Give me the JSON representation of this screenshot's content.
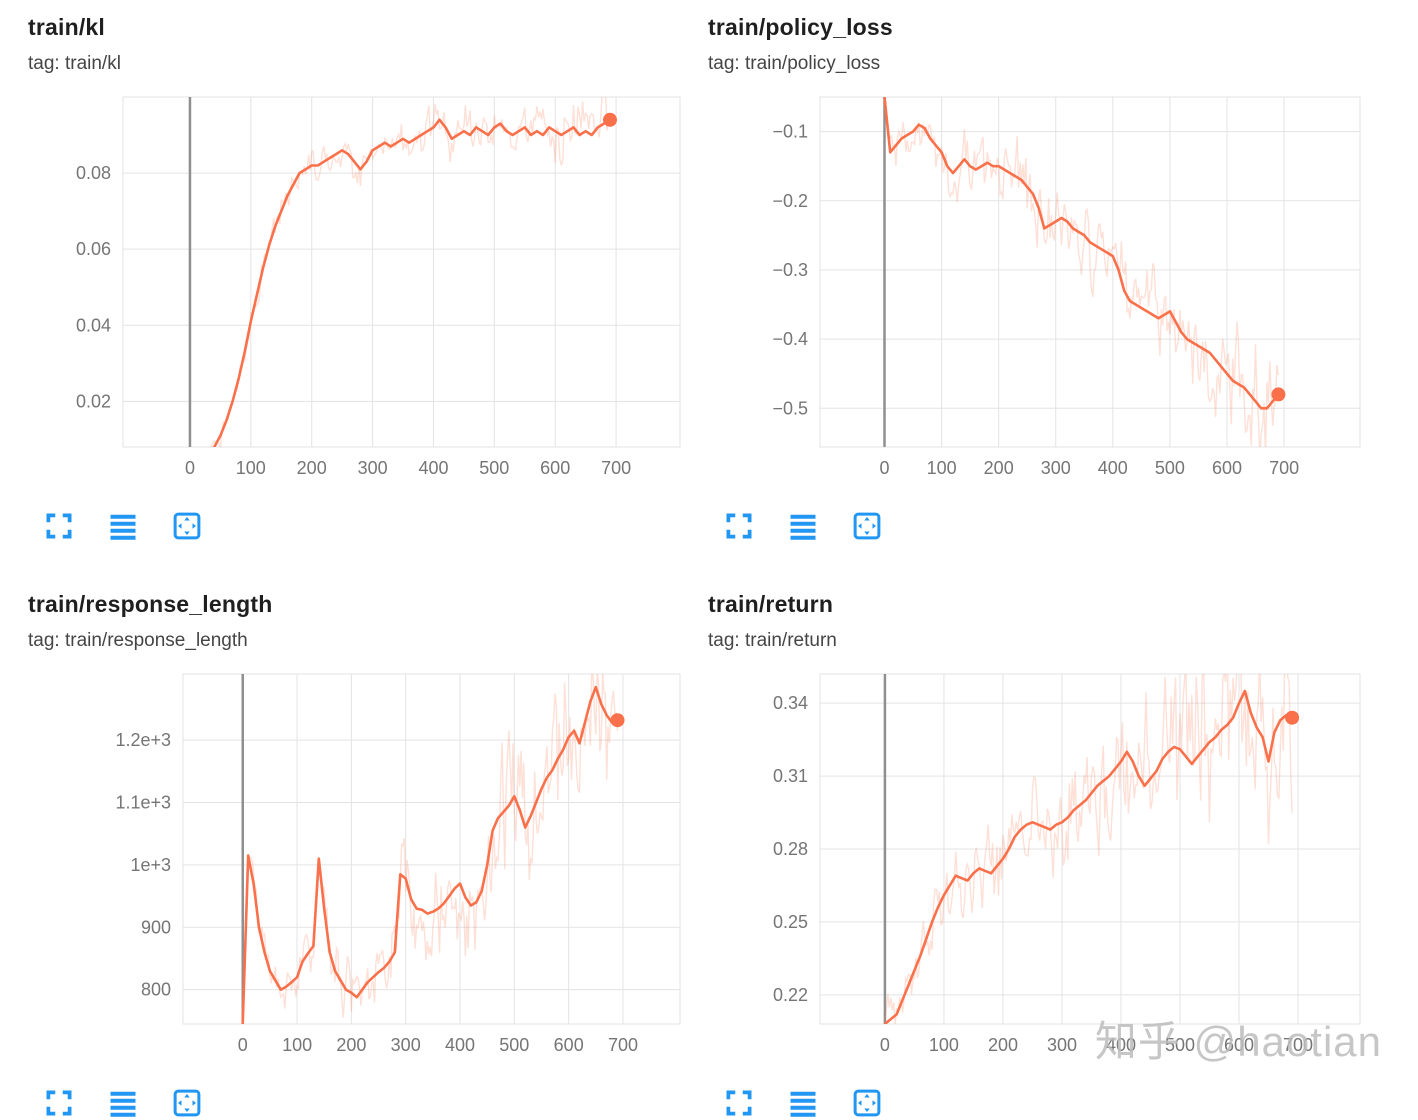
{
  "colors": {
    "line": "#f9704a",
    "line_raw": "rgba(249,112,74,0.22)",
    "grid": "#e3e3e3",
    "zero_line": "#8f8f8f",
    "tick_label": "#757575",
    "icon_blue": "#2196f3"
  },
  "watermark": {
    "text": "知乎 @haotian"
  },
  "chart_data": [
    {
      "type": "line",
      "title": "train/kl",
      "tag": "tag: train/kl",
      "x_start": 0,
      "x_step": 10,
      "x_ticks": [
        0,
        100,
        200,
        300,
        400,
        500,
        600,
        700
      ],
      "y_ticks": [
        0.02,
        0.04,
        0.06,
        0.08
      ],
      "y_tick_labels": [
        "0.02",
        "0.04",
        "0.06",
        "0.08"
      ],
      "xlim": [
        -110,
        805
      ],
      "ylim": [
        0.008,
        0.1
      ],
      "margin_left": 95,
      "end_dot": true,
      "raw_band": {
        "amp_start": 0.0015,
        "amp_end": 0.006
      },
      "series": [
        {
          "name": "smoothed",
          "values": [
            0.004,
            0.004,
            0.005,
            0.006,
            0.008,
            0.011,
            0.015,
            0.02,
            0.026,
            0.033,
            0.041,
            0.048,
            0.055,
            0.061,
            0.066,
            0.07,
            0.074,
            0.077,
            0.08,
            0.081,
            0.082,
            0.082,
            0.083,
            0.084,
            0.085,
            0.086,
            0.085,
            0.083,
            0.081,
            0.083,
            0.086,
            0.087,
            0.088,
            0.087,
            0.088,
            0.089,
            0.088,
            0.089,
            0.09,
            0.091,
            0.092,
            0.094,
            0.092,
            0.089,
            0.09,
            0.091,
            0.09,
            0.092,
            0.091,
            0.09,
            0.092,
            0.093,
            0.091,
            0.09,
            0.091,
            0.092,
            0.09,
            0.091,
            0.09,
            0.092,
            0.091,
            0.09,
            0.091,
            0.092,
            0.09,
            0.091,
            0.09,
            0.092,
            0.093,
            0.094
          ]
        }
      ]
    },
    {
      "type": "line",
      "title": "train/policy_loss",
      "tag": "tag: train/policy_loss",
      "x_start": 0,
      "x_step": 10,
      "x_ticks": [
        0,
        100,
        200,
        300,
        400,
        500,
        600,
        700
      ],
      "y_ticks": [
        -0.1,
        -0.2,
        -0.3,
        -0.4,
        -0.5
      ],
      "y_tick_labels": [
        "−0.1",
        "−0.2",
        "−0.3",
        "−0.4",
        "−0.5"
      ],
      "xlim": [
        -113,
        833
      ],
      "ylim": [
        -0.556,
        -0.05
      ],
      "margin_left": 112,
      "end_dot": true,
      "raw_band": {
        "amp_start": 0.022,
        "amp_end": 0.055
      },
      "series": [
        {
          "name": "smoothed",
          "values": [
            -0.05,
            -0.13,
            -0.12,
            -0.11,
            -0.105,
            -0.1,
            -0.09,
            -0.095,
            -0.11,
            -0.12,
            -0.13,
            -0.15,
            -0.16,
            -0.15,
            -0.14,
            -0.15,
            -0.155,
            -0.15,
            -0.145,
            -0.15,
            -0.15,
            -0.155,
            -0.16,
            -0.165,
            -0.17,
            -0.18,
            -0.19,
            -0.21,
            -0.24,
            -0.235,
            -0.23,
            -0.225,
            -0.23,
            -0.24,
            -0.245,
            -0.25,
            -0.26,
            -0.265,
            -0.27,
            -0.275,
            -0.28,
            -0.3,
            -0.33,
            -0.345,
            -0.35,
            -0.355,
            -0.36,
            -0.365,
            -0.37,
            -0.365,
            -0.36,
            -0.375,
            -0.39,
            -0.4,
            -0.405,
            -0.41,
            -0.415,
            -0.42,
            -0.43,
            -0.44,
            -0.45,
            -0.46,
            -0.465,
            -0.47,
            -0.48,
            -0.49,
            -0.5,
            -0.5,
            -0.49,
            -0.48
          ]
        }
      ]
    },
    {
      "type": "line",
      "title": "train/response_length",
      "tag": "tag: train/response_length",
      "x_start": 0,
      "x_step": 10,
      "x_ticks": [
        0,
        100,
        200,
        300,
        400,
        500,
        600,
        700
      ],
      "y_ticks": [
        800,
        900,
        1000,
        1100,
        1200
      ],
      "y_tick_labels": [
        "800",
        "900",
        "1e+3",
        "1.1e+3",
        "1.2e+3"
      ],
      "xlim": [
        -110,
        805
      ],
      "ylim": [
        745,
        1306
      ],
      "margin_left": 155,
      "end_dot": true,
      "raw_band": {
        "amp_start": 14,
        "amp_end": 85
      },
      "series": [
        {
          "name": "smoothed",
          "values": [
            745,
            1015,
            970,
            900,
            860,
            830,
            815,
            800,
            805,
            812,
            820,
            845,
            858,
            870,
            1010,
            930,
            860,
            830,
            815,
            800,
            795,
            788,
            800,
            812,
            820,
            828,
            835,
            845,
            860,
            985,
            978,
            945,
            930,
            928,
            922,
            925,
            930,
            938,
            950,
            962,
            970,
            948,
            935,
            940,
            958,
            1000,
            1055,
            1075,
            1085,
            1095,
            1110,
            1088,
            1060,
            1078,
            1100,
            1122,
            1140,
            1152,
            1170,
            1185,
            1205,
            1215,
            1195,
            1228,
            1262,
            1285,
            1258,
            1240,
            1228,
            1232
          ]
        }
      ]
    },
    {
      "type": "line",
      "title": "train/return",
      "tag": "tag: train/return",
      "x_start": 0,
      "x_step": 10,
      "x_ticks": [
        0,
        100,
        200,
        300,
        400,
        500,
        600,
        700
      ],
      "y_ticks": [
        0.22,
        0.25,
        0.28,
        0.31,
        0.34
      ],
      "y_tick_labels": [
        "0.22",
        "0.25",
        "0.28",
        "0.31",
        "0.34"
      ],
      "xlim": [
        -110,
        805
      ],
      "ylim": [
        0.208,
        0.352
      ],
      "margin_left": 112,
      "end_dot": true,
      "raw_band": {
        "amp_start": 0.007,
        "amp_end": 0.028
      },
      "series": [
        {
          "name": "smoothed",
          "values": [
            0.208,
            0.21,
            0.212,
            0.218,
            0.224,
            0.23,
            0.236,
            0.243,
            0.25,
            0.256,
            0.261,
            0.265,
            0.269,
            0.268,
            0.267,
            0.27,
            0.272,
            0.271,
            0.27,
            0.273,
            0.276,
            0.28,
            0.285,
            0.288,
            0.29,
            0.291,
            0.29,
            0.289,
            0.288,
            0.29,
            0.291,
            0.293,
            0.296,
            0.298,
            0.3,
            0.303,
            0.306,
            0.308,
            0.31,
            0.313,
            0.316,
            0.32,
            0.316,
            0.31,
            0.306,
            0.309,
            0.312,
            0.317,
            0.32,
            0.322,
            0.321,
            0.318,
            0.315,
            0.318,
            0.321,
            0.324,
            0.326,
            0.329,
            0.331,
            0.334,
            0.34,
            0.345,
            0.336,
            0.33,
            0.326,
            0.316,
            0.328,
            0.333,
            0.335,
            0.334
          ]
        }
      ]
    }
  ]
}
